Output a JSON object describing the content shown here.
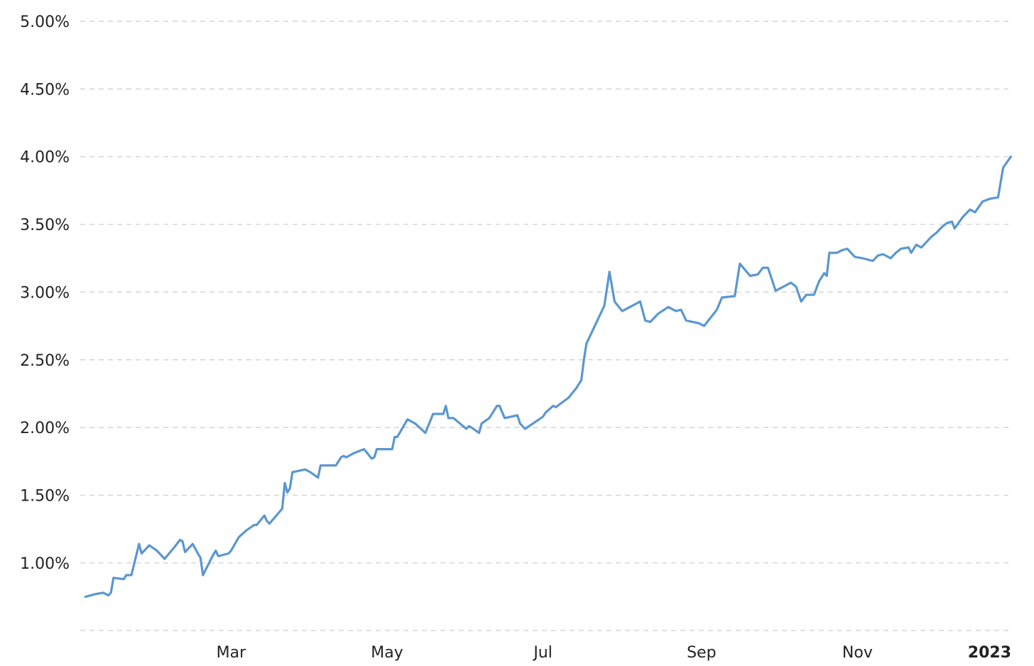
{
  "chart_data": {
    "type": "line",
    "title": "",
    "xlabel": "",
    "ylabel": "",
    "grid": true,
    "legend": "none",
    "ylim": [
      0.5,
      5.0
    ],
    "xlim": [
      "2022-01-01",
      "2023-01-01"
    ],
    "y_ticks": [
      {
        "value": 1.0,
        "label": "1.00%"
      },
      {
        "value": 1.5,
        "label": "1.50%"
      },
      {
        "value": 2.0,
        "label": "2.00%"
      },
      {
        "value": 2.5,
        "label": "2.50%"
      },
      {
        "value": 3.0,
        "label": "3.00%"
      },
      {
        "value": 3.5,
        "label": "3.50%"
      },
      {
        "value": 4.0,
        "label": "4.00%"
      },
      {
        "value": 4.5,
        "label": "4.50%"
      },
      {
        "value": 5.0,
        "label": "5.00%"
      }
    ],
    "x_ticks": [
      {
        "date": "2022-03-01",
        "label": "Mar",
        "bold": false
      },
      {
        "date": "2022-05-01",
        "label": "May",
        "bold": false
      },
      {
        "date": "2022-07-01",
        "label": "Jul",
        "bold": false
      },
      {
        "date": "2022-09-01",
        "label": "Sep",
        "bold": false
      },
      {
        "date": "2022-11-01",
        "label": "Nov",
        "bold": false
      },
      {
        "date": "2023-01-01",
        "label": "2023",
        "bold": true
      }
    ],
    "series": [
      {
        "color": "#5b97cf",
        "points": [
          [
            "2022-01-03",
            0.75
          ],
          [
            "2022-01-07",
            0.77
          ],
          [
            "2022-01-10",
            0.78
          ],
          [
            "2022-01-12",
            0.76
          ],
          [
            "2022-01-13",
            0.78
          ],
          [
            "2022-01-14",
            0.89
          ],
          [
            "2022-01-18",
            0.88
          ],
          [
            "2022-01-19",
            0.91
          ],
          [
            "2022-01-21",
            0.91
          ],
          [
            "2022-01-24",
            1.14
          ],
          [
            "2022-01-25",
            1.07
          ],
          [
            "2022-01-28",
            1.13
          ],
          [
            "2022-01-31",
            1.09
          ],
          [
            "2022-02-03",
            1.03
          ],
          [
            "2022-02-07",
            1.12
          ],
          [
            "2022-02-09",
            1.17
          ],
          [
            "2022-02-10",
            1.16
          ],
          [
            "2022-02-11",
            1.08
          ],
          [
            "2022-02-14",
            1.14
          ],
          [
            "2022-02-16",
            1.07
          ],
          [
            "2022-02-17",
            1.04
          ],
          [
            "2022-02-18",
            0.91
          ],
          [
            "2022-02-22",
            1.06
          ],
          [
            "2022-02-23",
            1.09
          ],
          [
            "2022-02-24",
            1.05
          ],
          [
            "2022-02-28",
            1.07
          ],
          [
            "2022-03-01",
            1.09
          ],
          [
            "2022-03-04",
            1.19
          ],
          [
            "2022-03-07",
            1.24
          ],
          [
            "2022-03-10",
            1.28
          ],
          [
            "2022-03-11",
            1.28
          ],
          [
            "2022-03-14",
            1.35
          ],
          [
            "2022-03-15",
            1.31
          ],
          [
            "2022-03-16",
            1.29
          ],
          [
            "2022-03-21",
            1.4
          ],
          [
            "2022-03-22",
            1.59
          ],
          [
            "2022-03-23",
            1.52
          ],
          [
            "2022-03-24",
            1.55
          ],
          [
            "2022-03-25",
            1.67
          ],
          [
            "2022-03-30",
            1.69
          ],
          [
            "2022-04-01",
            1.67
          ],
          [
            "2022-04-04",
            1.63
          ],
          [
            "2022-04-05",
            1.72
          ],
          [
            "2022-04-11",
            1.72
          ],
          [
            "2022-04-13",
            1.78
          ],
          [
            "2022-04-14",
            1.79
          ],
          [
            "2022-04-15",
            1.78
          ],
          [
            "2022-04-18",
            1.81
          ],
          [
            "2022-04-22",
            1.84
          ],
          [
            "2022-04-25",
            1.77
          ],
          [
            "2022-04-26",
            1.78
          ],
          [
            "2022-04-27",
            1.84
          ],
          [
            "2022-05-03",
            1.84
          ],
          [
            "2022-05-04",
            1.93
          ],
          [
            "2022-05-05",
            1.93
          ],
          [
            "2022-05-09",
            2.06
          ],
          [
            "2022-05-11",
            2.04
          ],
          [
            "2022-05-12",
            2.03
          ],
          [
            "2022-05-16",
            1.96
          ],
          [
            "2022-05-19",
            2.1
          ],
          [
            "2022-05-23",
            2.1
          ],
          [
            "2022-05-24",
            2.16
          ],
          [
            "2022-05-25",
            2.07
          ],
          [
            "2022-05-27",
            2.07
          ],
          [
            "2022-06-01",
            1.99
          ],
          [
            "2022-06-02",
            2.01
          ],
          [
            "2022-06-03",
            2.0
          ],
          [
            "2022-06-06",
            1.96
          ],
          [
            "2022-06-07",
            2.03
          ],
          [
            "2022-06-10",
            2.07
          ],
          [
            "2022-06-13",
            2.16
          ],
          [
            "2022-06-14",
            2.16
          ],
          [
            "2022-06-16",
            2.07
          ],
          [
            "2022-06-21",
            2.09
          ],
          [
            "2022-06-22",
            2.03
          ],
          [
            "2022-06-24",
            1.99
          ],
          [
            "2022-07-01",
            2.08
          ],
          [
            "2022-07-02",
            2.11
          ],
          [
            "2022-07-05",
            2.16
          ],
          [
            "2022-07-06",
            2.15
          ],
          [
            "2022-07-11",
            2.22
          ],
          [
            "2022-07-14",
            2.29
          ],
          [
            "2022-07-16",
            2.35
          ],
          [
            "2022-07-17",
            2.5
          ],
          [
            "2022-07-18",
            2.62
          ],
          [
            "2022-07-25",
            2.9
          ],
          [
            "2022-07-27",
            3.15
          ],
          [
            "2022-07-29",
            2.93
          ],
          [
            "2022-08-01",
            2.86
          ],
          [
            "2022-08-03",
            2.88
          ],
          [
            "2022-08-08",
            2.93
          ],
          [
            "2022-08-10",
            2.79
          ],
          [
            "2022-08-12",
            2.78
          ],
          [
            "2022-08-15",
            2.84
          ],
          [
            "2022-08-19",
            2.89
          ],
          [
            "2022-08-22",
            2.86
          ],
          [
            "2022-08-24",
            2.87
          ],
          [
            "2022-08-26",
            2.79
          ],
          [
            "2022-08-31",
            2.77
          ],
          [
            "2022-09-02",
            2.75
          ],
          [
            "2022-09-07",
            2.87
          ],
          [
            "2022-09-09",
            2.96
          ],
          [
            "2022-09-14",
            2.97
          ],
          [
            "2022-09-16",
            3.21
          ],
          [
            "2022-09-20",
            3.12
          ],
          [
            "2022-09-23",
            3.13
          ],
          [
            "2022-09-25",
            3.18
          ],
          [
            "2022-09-27",
            3.18
          ],
          [
            "2022-09-30",
            3.01
          ],
          [
            "2022-10-04",
            3.05
          ],
          [
            "2022-10-06",
            3.07
          ],
          [
            "2022-10-08",
            3.04
          ],
          [
            "2022-10-10",
            2.93
          ],
          [
            "2022-10-12",
            2.98
          ],
          [
            "2022-10-15",
            2.98
          ],
          [
            "2022-10-17",
            3.08
          ],
          [
            "2022-10-19",
            3.14
          ],
          [
            "2022-10-20",
            3.12
          ],
          [
            "2022-10-21",
            3.29
          ],
          [
            "2022-10-24",
            3.29
          ],
          [
            "2022-10-26",
            3.31
          ],
          [
            "2022-10-28",
            3.32
          ],
          [
            "2022-10-31",
            3.26
          ],
          [
            "2022-11-03",
            3.25
          ],
          [
            "2022-11-07",
            3.23
          ],
          [
            "2022-11-09",
            3.27
          ],
          [
            "2022-11-11",
            3.28
          ],
          [
            "2022-11-14",
            3.25
          ],
          [
            "2022-11-16",
            3.29
          ],
          [
            "2022-11-18",
            3.32
          ],
          [
            "2022-11-21",
            3.33
          ],
          [
            "2022-11-22",
            3.29
          ],
          [
            "2022-11-24",
            3.35
          ],
          [
            "2022-11-26",
            3.33
          ],
          [
            "2022-11-28",
            3.37
          ],
          [
            "2022-11-30",
            3.41
          ],
          [
            "2022-12-02",
            3.44
          ],
          [
            "2022-12-04",
            3.48
          ],
          [
            "2022-12-06",
            3.51
          ],
          [
            "2022-12-08",
            3.52
          ],
          [
            "2022-12-09",
            3.47
          ],
          [
            "2022-12-12",
            3.55
          ],
          [
            "2022-12-15",
            3.61
          ],
          [
            "2022-12-17",
            3.59
          ],
          [
            "2022-12-20",
            3.67
          ],
          [
            "2022-12-23",
            3.69
          ],
          [
            "2022-12-26",
            3.7
          ],
          [
            "2022-12-28",
            3.92
          ],
          [
            "2022-12-31",
            4.0
          ]
        ]
      }
    ]
  }
}
